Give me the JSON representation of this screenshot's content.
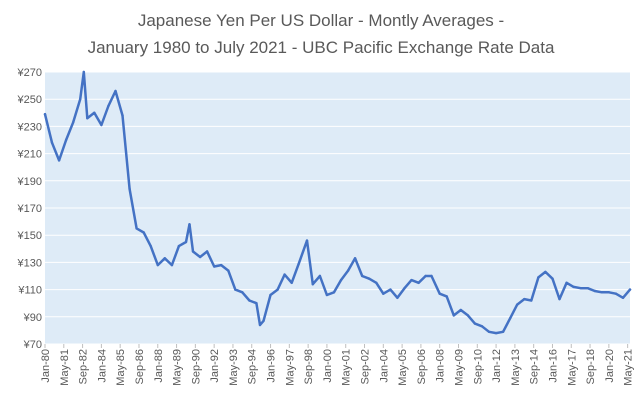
{
  "chart_data": {
    "type": "line",
    "title_lines": [
      "Japanese Yen Per US Dollar - Montly Averages -",
      "January 1980 to July 2021 - UBC Pacific Exchange Rate Data"
    ],
    "y_ticks": [
      "¥270",
      "¥250",
      "¥230",
      "¥210",
      "¥190",
      "¥170",
      "¥150",
      "¥130",
      "¥110",
      "¥90",
      "¥70"
    ],
    "ylim": [
      70,
      270
    ],
    "x_ticks": [
      "Jan-80",
      "May-81",
      "Sep-82",
      "Jan-84",
      "May-85",
      "Sep-86",
      "Jan-88",
      "May-89",
      "Sep-90",
      "Jan-92",
      "May-93",
      "Sep-94",
      "Jan-96",
      "May-97",
      "Sep-98",
      "Jan-00",
      "May-01",
      "Sep-02",
      "Jan-04",
      "May-05",
      "Sep-06",
      "Jan-08",
      "May-09",
      "Sep-10",
      "Jan-12",
      "May-13",
      "Sep-14",
      "Jan-16",
      "May-17",
      "Sep-18",
      "Jan-20",
      "May-21"
    ],
    "x": [
      "Jan-80",
      "Jul-80",
      "Jan-81",
      "Jul-81",
      "Jan-82",
      "Jul-82",
      "Oct-82",
      "Jan-83",
      "Jul-83",
      "Jan-84",
      "Jul-84",
      "Jan-85",
      "Jul-85",
      "Jan-86",
      "Jul-86",
      "Jan-87",
      "Jul-87",
      "Jan-88",
      "Jul-88",
      "Jan-89",
      "Jul-89",
      "Jan-90",
      "Apr-90",
      "Jul-90",
      "Jan-91",
      "Jul-91",
      "Jan-92",
      "Jul-92",
      "Jan-93",
      "Jul-93",
      "Jan-94",
      "Jul-94",
      "Jan-95",
      "Apr-95",
      "Jul-95",
      "Jan-96",
      "Jul-96",
      "Jan-97",
      "Jul-97",
      "Jan-98",
      "Aug-98",
      "Jan-99",
      "Jul-99",
      "Jan-00",
      "Jul-00",
      "Jan-01",
      "Jul-01",
      "Jan-02",
      "Jul-02",
      "Jan-03",
      "Jul-03",
      "Jan-04",
      "Jul-04",
      "Jan-05",
      "Jul-05",
      "Jan-06",
      "Jul-06",
      "Jan-07",
      "Jun-07",
      "Jan-08",
      "Jul-08",
      "Jan-09",
      "Jul-09",
      "Jan-10",
      "Jul-10",
      "Jan-11",
      "Jul-11",
      "Jan-12",
      "Jul-12",
      "Jan-13",
      "Jul-13",
      "Jan-14",
      "Jul-14",
      "Jan-15",
      "Jul-15",
      "Jan-16",
      "Jul-16",
      "Jan-17",
      "Jul-17",
      "Jan-18",
      "Jul-18",
      "Jan-19",
      "Jul-19",
      "Jan-20",
      "Jul-20",
      "Jan-21",
      "Jul-21"
    ],
    "series": [
      {
        "values": [
          239,
          218,
          205,
          220,
          233,
          250,
          270,
          236,
          240,
          231,
          245,
          256,
          238,
          184,
          155,
          152,
          142,
          128,
          133,
          128,
          142,
          145,
          158,
          138,
          134,
          138,
          127,
          128,
          124,
          110,
          108,
          102,
          100,
          84,
          87,
          106,
          110,
          121,
          115,
          129,
          146,
          114,
          120,
          106,
          108,
          117,
          124,
          133,
          120,
          118,
          115,
          107,
          110,
          104,
          111,
          117,
          115,
          120,
          120,
          107,
          105,
          91,
          95,
          91,
          85,
          83,
          79,
          78,
          79,
          89,
          99,
          103,
          102,
          119,
          123,
          118,
          103,
          115,
          112,
          111,
          111,
          109,
          108,
          108,
          107,
          104,
          110
        ],
        "color": "#4472C4"
      }
    ],
    "plot_background": "#DEEBF7",
    "grid": true
  }
}
